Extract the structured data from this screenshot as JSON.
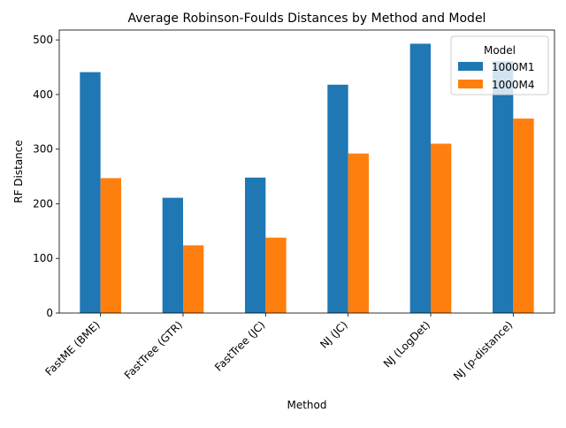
{
  "chart_data": {
    "type": "bar",
    "title": "Average Robinson-Foulds Distances by Method and Model",
    "xlabel": "Method",
    "ylabel": "RF Distance",
    "categories": [
      "FastME (BME)",
      "FastTree (GTR)",
      "FastTree (JC)",
      "NJ (JC)",
      "NJ (LogDet)",
      "NJ (p-distance)"
    ],
    "series": [
      {
        "name": "1000M1",
        "color": "#1f77b4",
        "values": [
          441,
          211,
          248,
          418,
          493,
          461
        ]
      },
      {
        "name": "1000M4",
        "color": "#ff7f0e",
        "values": [
          247,
          124,
          138,
          292,
          310,
          356
        ]
      }
    ],
    "yticks": [
      0,
      100,
      200,
      300,
      400,
      500
    ],
    "ylim": [
      0,
      518
    ],
    "grid": false,
    "legend": {
      "title": "Model",
      "placement": "top-right"
    }
  }
}
